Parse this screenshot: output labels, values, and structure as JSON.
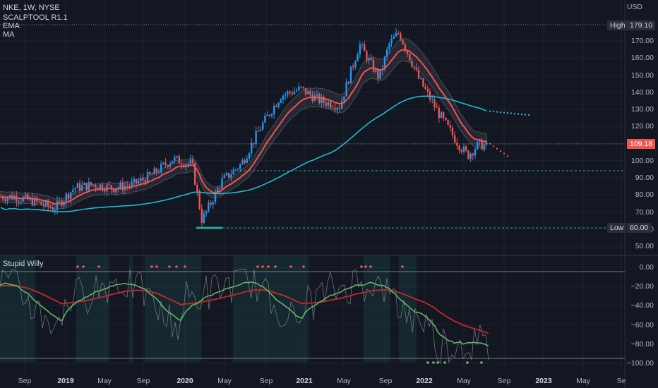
{
  "header": {
    "symbol": "NKE, 1W, NYSE",
    "indicators": [
      "SCALPTOOL R1.1",
      "EMA",
      "MA"
    ],
    "currency": "USD"
  },
  "price_axis": {
    "ticks": [
      "170.00",
      "160.00",
      "150.00",
      "140.00",
      "130.00",
      "120.00",
      "110.00",
      "100.00",
      "90.00",
      "80.00",
      "70.00",
      "60.00",
      "50.00"
    ],
    "tick_values": [
      170,
      160,
      150,
      140,
      130,
      120,
      110,
      100,
      90,
      80,
      70,
      60,
      50
    ]
  },
  "markers": {
    "high_label": "High",
    "high_value": "179.10",
    "low_label": "Low",
    "low_value": "60.00",
    "current_value": "109.18"
  },
  "oscillator": {
    "name": "Stupid Willy",
    "ticks": [
      "0.00",
      "−20.00",
      "−40.00",
      "−60.00",
      "−80.00",
      "−100.00"
    ],
    "tick_values": [
      0,
      -20,
      -40,
      -60,
      -80,
      -100
    ]
  },
  "time_axis": [
    {
      "label": "Sep",
      "year": false
    },
    {
      "label": "2019",
      "year": true
    },
    {
      "label": "May",
      "year": false
    },
    {
      "label": "Sep",
      "year": false
    },
    {
      "label": "2020",
      "year": true
    },
    {
      "label": "May",
      "year": false
    },
    {
      "label": "Sep",
      "year": false
    },
    {
      "label": "2021",
      "year": true
    },
    {
      "label": "May",
      "year": false
    },
    {
      "label": "Sep",
      "year": false
    },
    {
      "label": "2022",
      "year": true
    },
    {
      "label": "May",
      "year": false
    },
    {
      "label": "Sep",
      "year": false
    },
    {
      "label": "2023",
      "year": true
    },
    {
      "label": "May",
      "year": false
    },
    {
      "label": "Se",
      "year": false
    }
  ],
  "chart_data": {
    "type": "candlestick",
    "title": "NKE, 1W, NYSE",
    "price_range": [
      45,
      184
    ],
    "close_series": [
      {
        "date": "2018-08",
        "close": 79
      },
      {
        "date": "2018-10",
        "close": 76
      },
      {
        "date": "2018-12",
        "close": 72
      },
      {
        "date": "2019-02",
        "close": 84
      },
      {
        "date": "2019-04",
        "close": 86
      },
      {
        "date": "2019-06",
        "close": 84
      },
      {
        "date": "2019-08",
        "close": 86
      },
      {
        "date": "2019-10",
        "close": 92
      },
      {
        "date": "2019-12",
        "close": 101
      },
      {
        "date": "2020-02",
        "close": 98
      },
      {
        "date": "2020-03",
        "close": 65
      },
      {
        "date": "2020-05",
        "close": 88
      },
      {
        "date": "2020-07",
        "close": 98
      },
      {
        "date": "2020-09",
        "close": 120
      },
      {
        "date": "2020-11",
        "close": 138
      },
      {
        "date": "2021-01",
        "close": 142
      },
      {
        "date": "2021-03",
        "close": 135
      },
      {
        "date": "2021-05",
        "close": 132
      },
      {
        "date": "2021-07",
        "close": 168
      },
      {
        "date": "2021-09",
        "close": 148
      },
      {
        "date": "2021-10",
        "close": 168
      },
      {
        "date": "2021-11",
        "close": 175
      },
      {
        "date": "2022-01",
        "close": 148
      },
      {
        "date": "2022-03",
        "close": 128
      },
      {
        "date": "2022-05",
        "close": 110
      },
      {
        "date": "2022-06",
        "close": 103
      },
      {
        "date": "2022-07",
        "close": 109
      }
    ],
    "high": 179.1,
    "low": 60.0,
    "last": 109.18,
    "oscillator_range": [
      -100,
      0
    ]
  }
}
